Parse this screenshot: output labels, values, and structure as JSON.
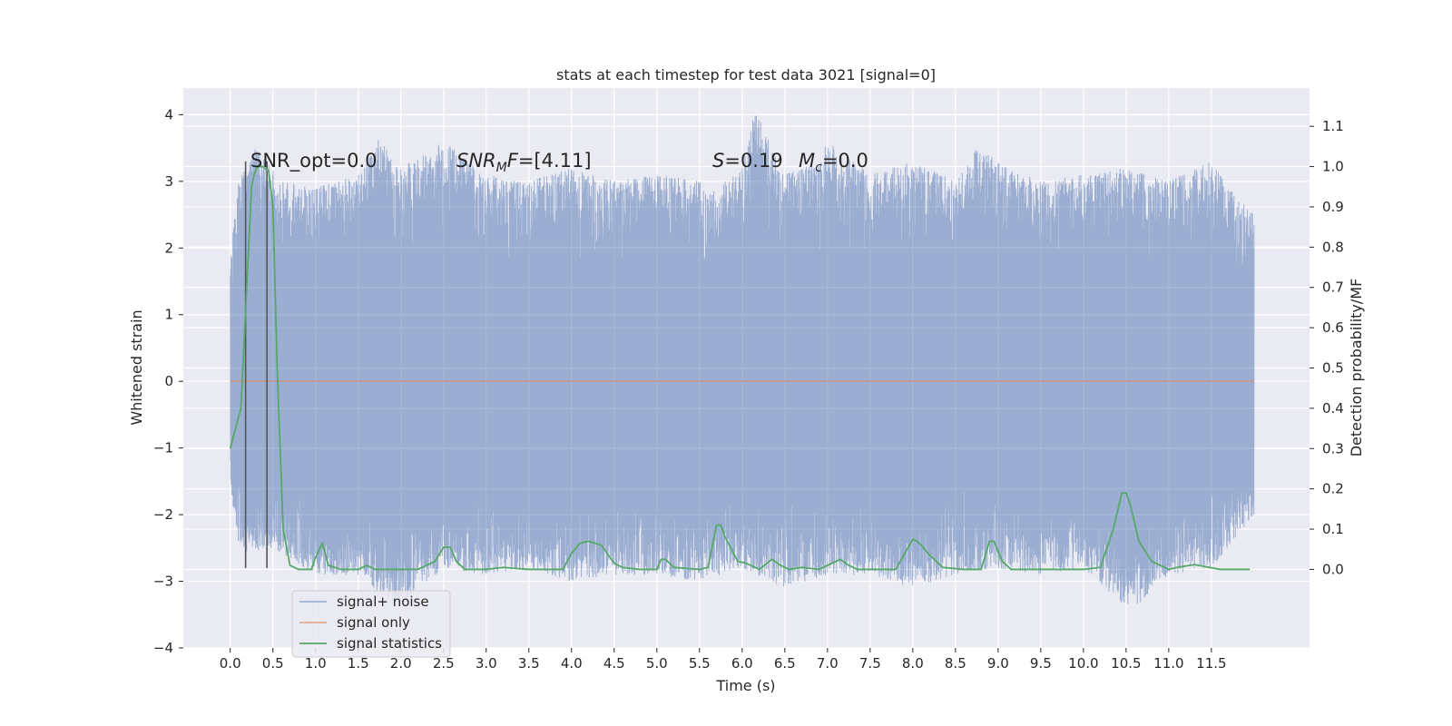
{
  "chart_data": {
    "type": "line",
    "title": "stats at each timestep for test data 3021 [signal=0]",
    "xlabel": "Time (s)",
    "ylabel": "Whitened strain",
    "y2label": "Detection probability/MF",
    "xlim": [
      -0.55,
      12.65
    ],
    "ylim": [
      -4.0,
      4.4
    ],
    "y2lim": [
      -0.195,
      1.195
    ],
    "x_ticks": [
      "0.0",
      "0.5",
      "1.0",
      "1.5",
      "2.0",
      "2.5",
      "3.0",
      "3.5",
      "4.0",
      "4.5",
      "5.0",
      "5.5",
      "6.0",
      "6.5",
      "7.0",
      "7.5",
      "8.0",
      "8.5",
      "9.0",
      "9.5",
      "10.0",
      "10.5",
      "11.0",
      "11.5"
    ],
    "y_ticks": [
      "4",
      "3",
      "2",
      "1",
      "0",
      "−1",
      "−2",
      "−3",
      "−4"
    ],
    "y2_ticks": [
      "1.1",
      "1.0",
      "0.9",
      "0.8",
      "0.7",
      "0.6",
      "0.5",
      "0.4",
      "0.3",
      "0.2",
      "0.1",
      "0.0"
    ],
    "grid": true,
    "legend_position": "lower-left",
    "annotations": {
      "snr_opt": "SNR_opt=0.0",
      "snr_mf": "=[4.11]",
      "snr_mf_sym": "SNR",
      "snr_mf_sub": "M",
      "snr_mf_tail": "F",
      "s_label": "S",
      "s_value": "=0.19",
      "mc_label": "M",
      "mc_sub": "c",
      "mc_value": "=0.0"
    },
    "series": [
      {
        "name": "signal+ noise",
        "kind": "noise",
        "color": "#4c72b0",
        "x_range": [
          0.0,
          12.0
        ],
        "upper_envelope": [
          [
            0.0,
            1.9
          ],
          [
            0.1,
            3.0
          ],
          [
            0.3,
            3.5
          ],
          [
            0.6,
            3.0
          ],
          [
            1.0,
            2.9
          ],
          [
            1.5,
            3.1
          ],
          [
            1.75,
            3.65
          ],
          [
            2.0,
            3.2
          ],
          [
            2.5,
            3.6
          ],
          [
            3.0,
            3.1
          ],
          [
            3.5,
            3.0
          ],
          [
            4.0,
            3.2
          ],
          [
            4.5,
            3.0
          ],
          [
            5.0,
            3.1
          ],
          [
            5.5,
            3.0
          ],
          [
            5.6,
            2.8
          ],
          [
            6.0,
            3.2
          ],
          [
            6.15,
            4.1
          ],
          [
            6.5,
            3.1
          ],
          [
            6.9,
            3.3
          ],
          [
            7.0,
            3.6
          ],
          [
            7.5,
            3.1
          ],
          [
            8.0,
            3.3
          ],
          [
            8.5,
            3.0
          ],
          [
            8.75,
            3.5
          ],
          [
            9.0,
            3.3
          ],
          [
            9.5,
            3.0
          ],
          [
            10.0,
            3.1
          ],
          [
            10.5,
            3.2
          ],
          [
            11.0,
            3.0
          ],
          [
            11.5,
            3.3
          ],
          [
            11.7,
            2.9
          ],
          [
            12.0,
            2.5
          ]
        ],
        "lower_envelope": [
          [
            0.0,
            -1.5
          ],
          [
            0.1,
            -2.6
          ],
          [
            0.5,
            -2.5
          ],
          [
            1.0,
            -2.9
          ],
          [
            1.5,
            -2.9
          ],
          [
            1.95,
            -3.4
          ],
          [
            2.5,
            -2.8
          ],
          [
            3.0,
            -2.9
          ],
          [
            3.5,
            -2.8
          ],
          [
            4.0,
            -3.0
          ],
          [
            4.5,
            -2.9
          ],
          [
            5.0,
            -2.9
          ],
          [
            5.5,
            -3.0
          ],
          [
            6.0,
            -2.8
          ],
          [
            6.5,
            -3.1
          ],
          [
            7.0,
            -2.9
          ],
          [
            7.5,
            -2.9
          ],
          [
            8.0,
            -3.1
          ],
          [
            8.5,
            -2.9
          ],
          [
            9.0,
            -2.8
          ],
          [
            9.5,
            -2.9
          ],
          [
            10.0,
            -2.8
          ],
          [
            10.5,
            -3.4
          ],
          [
            10.7,
            -3.3
          ],
          [
            11.0,
            -2.9
          ],
          [
            11.5,
            -2.8
          ],
          [
            12.0,
            -2.0
          ]
        ]
      },
      {
        "name": "signal only",
        "kind": "line",
        "color": "#dd8452",
        "x": [
          0.0,
          12.0
        ],
        "y": [
          0.0,
          0.0
        ]
      },
      {
        "name": "signal statistics",
        "kind": "line",
        "axis": "right",
        "color": "#55a868",
        "x": [
          0.0,
          0.125,
          0.25,
          0.28,
          0.32,
          0.38,
          0.45,
          0.5,
          0.55,
          0.62,
          0.7,
          0.8,
          0.95,
          1.0,
          1.08,
          1.15,
          1.3,
          1.5,
          1.6,
          1.7,
          1.9,
          2.2,
          2.4,
          2.5,
          2.58,
          2.65,
          2.75,
          3.0,
          3.2,
          3.5,
          3.9,
          4.0,
          4.1,
          4.2,
          4.35,
          4.5,
          4.6,
          4.8,
          5.0,
          5.05,
          5.1,
          5.2,
          5.5,
          5.6,
          5.7,
          5.75,
          5.8,
          5.9,
          5.95,
          6.05,
          6.2,
          6.35,
          6.45,
          6.55,
          6.7,
          6.9,
          7.0,
          7.15,
          7.25,
          7.35,
          7.5,
          7.8,
          8.0,
          8.05,
          8.1,
          8.2,
          8.35,
          8.6,
          8.8,
          8.9,
          8.95,
          9.05,
          9.15,
          9.5,
          10.0,
          10.2,
          10.35,
          10.45,
          10.5,
          10.55,
          10.65,
          10.8,
          11.0,
          11.1,
          11.3,
          11.6,
          11.8,
          11.95
        ],
        "y": [
          0.3,
          0.4,
          0.95,
          0.98,
          1.0,
          1.0,
          0.99,
          0.9,
          0.5,
          0.1,
          0.01,
          0.0,
          0.0,
          0.03,
          0.065,
          0.01,
          0.0,
          0.0,
          0.01,
          0.0,
          0.0,
          0.0,
          0.02,
          0.055,
          0.055,
          0.02,
          0.0,
          0.0,
          0.005,
          0.0,
          0.0,
          0.04,
          0.065,
          0.07,
          0.06,
          0.015,
          0.005,
          0.0,
          0.0,
          0.025,
          0.025,
          0.005,
          0.0,
          0.005,
          0.11,
          0.11,
          0.08,
          0.04,
          0.02,
          0.015,
          0.0,
          0.025,
          0.01,
          0.0,
          0.005,
          0.0,
          0.01,
          0.025,
          0.01,
          0.0,
          0.0,
          0.0,
          0.075,
          0.07,
          0.06,
          0.035,
          0.005,
          0.0,
          0.0,
          0.07,
          0.07,
          0.02,
          0.0,
          0.0,
          0.0,
          0.005,
          0.1,
          0.19,
          0.19,
          0.16,
          0.07,
          0.02,
          0.0,
          0.005,
          0.012,
          0.0,
          0.0,
          0.0
        ]
      }
    ],
    "vertical_markers": [
      {
        "x": 0.18,
        "y_from": -2.8,
        "y_to": 3.3,
        "color": "#555555"
      },
      {
        "x": 0.43,
        "y_from": -2.8,
        "y_to": 3.3,
        "color": "#555555"
      }
    ]
  }
}
